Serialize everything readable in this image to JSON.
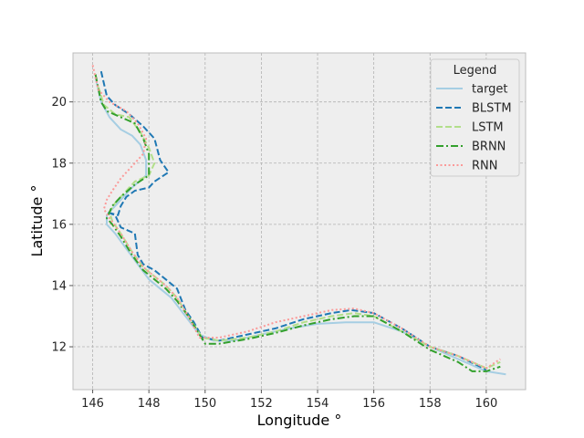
{
  "chart_data": {
    "type": "line",
    "title": "",
    "xlabel": "Longitude °",
    "ylabel": "Latitude °",
    "xlim": [
      145.3,
      161.4
    ],
    "ylim": [
      10.6,
      21.6
    ],
    "xticks": [
      "146",
      "148",
      "150",
      "152",
      "154",
      "156",
      "158",
      "160"
    ],
    "yticks": [
      "12",
      "14",
      "16",
      "18",
      "20"
    ],
    "grid": true,
    "legend": {
      "title": "Legend",
      "placement": "top-right"
    },
    "background": "#eeeeee",
    "series": [
      {
        "name": "target",
        "color": "#a6cee3",
        "dash": "solid",
        "points": [
          [
            146.1,
            20.8
          ],
          [
            146.3,
            20.0
          ],
          [
            146.6,
            19.5
          ],
          [
            147.0,
            19.1
          ],
          [
            147.4,
            18.9
          ],
          [
            147.7,
            18.6
          ],
          [
            147.9,
            18.1
          ],
          [
            147.9,
            17.6
          ],
          [
            147.4,
            17.2
          ],
          [
            147.0,
            16.8
          ],
          [
            146.7,
            16.5
          ],
          [
            146.5,
            16.3
          ],
          [
            146.5,
            16.0
          ],
          [
            146.8,
            15.7
          ],
          [
            147.2,
            15.2
          ],
          [
            147.6,
            14.7
          ],
          [
            148.0,
            14.2
          ],
          [
            148.4,
            13.9
          ],
          [
            148.8,
            13.6
          ],
          [
            149.3,
            13.0
          ],
          [
            149.8,
            12.4
          ],
          [
            150.3,
            12.2
          ],
          [
            151.0,
            12.2
          ],
          [
            152.0,
            12.4
          ],
          [
            153.0,
            12.6
          ],
          [
            154.0,
            12.75
          ],
          [
            155.0,
            12.8
          ],
          [
            156.0,
            12.8
          ],
          [
            157.0,
            12.5
          ],
          [
            158.0,
            12.0
          ],
          [
            159.0,
            11.6
          ],
          [
            160.0,
            11.2
          ],
          [
            160.7,
            11.1
          ]
        ]
      },
      {
        "name": "BLSTM",
        "color": "#1f78b4",
        "dash": "dashed",
        "points": [
          [
            146.3,
            21.0
          ],
          [
            146.5,
            20.2
          ],
          [
            146.8,
            19.9
          ],
          [
            147.3,
            19.6
          ],
          [
            147.8,
            19.2
          ],
          [
            148.2,
            18.8
          ],
          [
            148.4,
            18.1
          ],
          [
            148.7,
            17.7
          ],
          [
            148.2,
            17.4
          ],
          [
            148.0,
            17.2
          ],
          [
            147.5,
            17.1
          ],
          [
            147.2,
            16.9
          ],
          [
            147.0,
            16.6
          ],
          [
            146.9,
            16.3
          ],
          [
            146.5,
            16.4
          ],
          [
            146.8,
            16.3
          ],
          [
            147.0,
            15.9
          ],
          [
            147.5,
            15.7
          ],
          [
            147.6,
            15.0
          ],
          [
            147.8,
            14.7
          ],
          [
            148.2,
            14.5
          ],
          [
            148.6,
            14.2
          ],
          [
            149.0,
            13.9
          ],
          [
            149.3,
            13.2
          ],
          [
            149.6,
            12.8
          ],
          [
            149.9,
            12.3
          ],
          [
            150.5,
            12.2
          ],
          [
            151.5,
            12.4
          ],
          [
            152.5,
            12.6
          ],
          [
            153.5,
            12.9
          ],
          [
            154.5,
            13.1
          ],
          [
            155.2,
            13.2
          ],
          [
            156.0,
            13.1
          ],
          [
            157.0,
            12.6
          ],
          [
            158.0,
            12.0
          ],
          [
            159.0,
            11.7
          ],
          [
            160.0,
            11.25
          ]
        ]
      },
      {
        "name": "LSTM",
        "color": "#b2df8a",
        "dash": "dashed",
        "points": [
          [
            146.2,
            20.5
          ],
          [
            146.4,
            19.9
          ],
          [
            146.8,
            19.6
          ],
          [
            147.3,
            19.5
          ],
          [
            147.7,
            19.0
          ],
          [
            148.0,
            18.5
          ],
          [
            148.2,
            18.0
          ],
          [
            148.0,
            17.6
          ],
          [
            147.5,
            17.4
          ],
          [
            147.1,
            17.0
          ],
          [
            146.8,
            16.7
          ],
          [
            146.6,
            16.4
          ],
          [
            146.7,
            16.1
          ],
          [
            147.0,
            15.7
          ],
          [
            147.4,
            15.1
          ],
          [
            147.8,
            14.6
          ],
          [
            148.2,
            14.3
          ],
          [
            148.6,
            14.0
          ],
          [
            149.0,
            13.6
          ],
          [
            149.4,
            13.0
          ],
          [
            149.9,
            12.3
          ],
          [
            150.5,
            12.2
          ],
          [
            151.5,
            12.3
          ],
          [
            152.5,
            12.5
          ],
          [
            153.5,
            12.8
          ],
          [
            154.5,
            13.0
          ],
          [
            155.3,
            13.1
          ],
          [
            156.0,
            13.0
          ],
          [
            157.0,
            12.5
          ],
          [
            158.0,
            12.0
          ],
          [
            159.0,
            11.7
          ],
          [
            160.0,
            11.3
          ],
          [
            160.5,
            11.5
          ]
        ]
      },
      {
        "name": "BRNN",
        "color": "#33a02c",
        "dash": "dashdot",
        "points": [
          [
            146.1,
            20.9
          ],
          [
            146.3,
            20.0
          ],
          [
            146.5,
            19.7
          ],
          [
            147.0,
            19.5
          ],
          [
            147.5,
            19.3
          ],
          [
            147.8,
            18.8
          ],
          [
            148.0,
            18.3
          ],
          [
            148.0,
            17.6
          ],
          [
            147.5,
            17.3
          ],
          [
            147.0,
            16.9
          ],
          [
            146.7,
            16.6
          ],
          [
            146.5,
            16.2
          ],
          [
            146.7,
            16.0
          ],
          [
            147.0,
            15.6
          ],
          [
            147.4,
            15.0
          ],
          [
            147.8,
            14.5
          ],
          [
            148.2,
            14.2
          ],
          [
            148.6,
            13.9
          ],
          [
            149.0,
            13.5
          ],
          [
            149.4,
            13.0
          ],
          [
            149.8,
            12.4
          ],
          [
            150.0,
            12.1
          ],
          [
            150.5,
            12.1
          ],
          [
            151.5,
            12.25
          ],
          [
            152.5,
            12.45
          ],
          [
            153.5,
            12.7
          ],
          [
            154.5,
            12.9
          ],
          [
            155.3,
            13.0
          ],
          [
            156.0,
            13.0
          ],
          [
            157.0,
            12.5
          ],
          [
            158.0,
            11.9
          ],
          [
            159.0,
            11.5
          ],
          [
            159.5,
            11.2
          ],
          [
            160.0,
            11.2
          ],
          [
            160.5,
            11.35
          ]
        ]
      },
      {
        "name": "RNN",
        "color": "#fb9a99",
        "dash": "dotted",
        "points": [
          [
            146.0,
            21.2
          ],
          [
            146.2,
            20.4
          ],
          [
            146.6,
            20.0
          ],
          [
            147.2,
            19.7
          ],
          [
            147.6,
            19.3
          ],
          [
            147.9,
            18.8
          ],
          [
            147.8,
            18.3
          ],
          [
            147.4,
            17.9
          ],
          [
            147.0,
            17.5
          ],
          [
            146.7,
            17.1
          ],
          [
            146.5,
            16.8
          ],
          [
            146.4,
            16.5
          ],
          [
            146.6,
            16.2
          ],
          [
            147.0,
            15.7
          ],
          [
            147.4,
            15.1
          ],
          [
            147.8,
            14.6
          ],
          [
            148.2,
            14.3
          ],
          [
            148.6,
            14.0
          ],
          [
            149.0,
            13.6
          ],
          [
            149.4,
            13.0
          ],
          [
            149.8,
            12.3
          ],
          [
            150.5,
            12.3
          ],
          [
            151.5,
            12.5
          ],
          [
            152.5,
            12.8
          ],
          [
            153.5,
            13.0
          ],
          [
            154.5,
            13.2
          ],
          [
            155.3,
            13.25
          ],
          [
            156.0,
            13.1
          ],
          [
            157.0,
            12.6
          ],
          [
            158.0,
            12.0
          ],
          [
            159.0,
            11.7
          ],
          [
            160.0,
            11.3
          ],
          [
            160.5,
            11.6
          ]
        ]
      }
    ]
  }
}
